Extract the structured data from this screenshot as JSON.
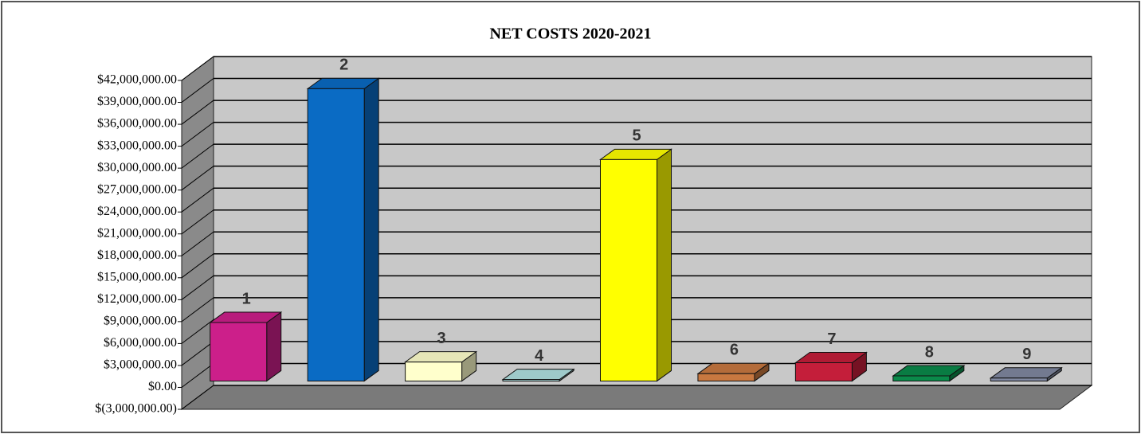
{
  "chart_data": {
    "type": "bar3d",
    "title": "NET COSTS 2020-2021",
    "categories": [
      "1",
      "2",
      "3",
      "4",
      "5",
      "6",
      "7",
      "8",
      "9"
    ],
    "values": [
      8000000,
      40000000,
      2600000,
      200000,
      30300000,
      1000000,
      2500000,
      700000,
      400000
    ],
    "colors": [
      "#cc1f8a",
      "#0a6bc4",
      "#ffffcc",
      "#b0e0e0",
      "#ffff00",
      "#c87840",
      "#c41e3a",
      "#0a8a4a",
      "#8088a0"
    ],
    "ylim": [
      -3000000,
      42000000
    ],
    "yticks": [
      {
        "value": -3000000,
        "label": "$(3,000,000.00)"
      },
      {
        "value": 0,
        "label": "$0.00"
      },
      {
        "value": 3000000,
        "label": "$3,000,000.00"
      },
      {
        "value": 6000000,
        "label": "$6,000,000.00"
      },
      {
        "value": 9000000,
        "label": "$9,000,000.00"
      },
      {
        "value": 12000000,
        "label": "$12,000,000.00"
      },
      {
        "value": 15000000,
        "label": "$15,000,000.00"
      },
      {
        "value": 18000000,
        "label": "$18,000,000.00"
      },
      {
        "value": 21000000,
        "label": "$21,000,000.00"
      },
      {
        "value": 24000000,
        "label": "$24,000,000.00"
      },
      {
        "value": 27000000,
        "label": "$27,000,000.00"
      },
      {
        "value": 30000000,
        "label": "$30,000,000.00"
      },
      {
        "value": 33000000,
        "label": "$33,000,000.00"
      },
      {
        "value": 36000000,
        "label": "$36,000,000.00"
      },
      {
        "value": 39000000,
        "label": "$39,000,000.00"
      },
      {
        "value": 42000000,
        "label": "$42,000,000.00"
      }
    ],
    "grid": true
  }
}
